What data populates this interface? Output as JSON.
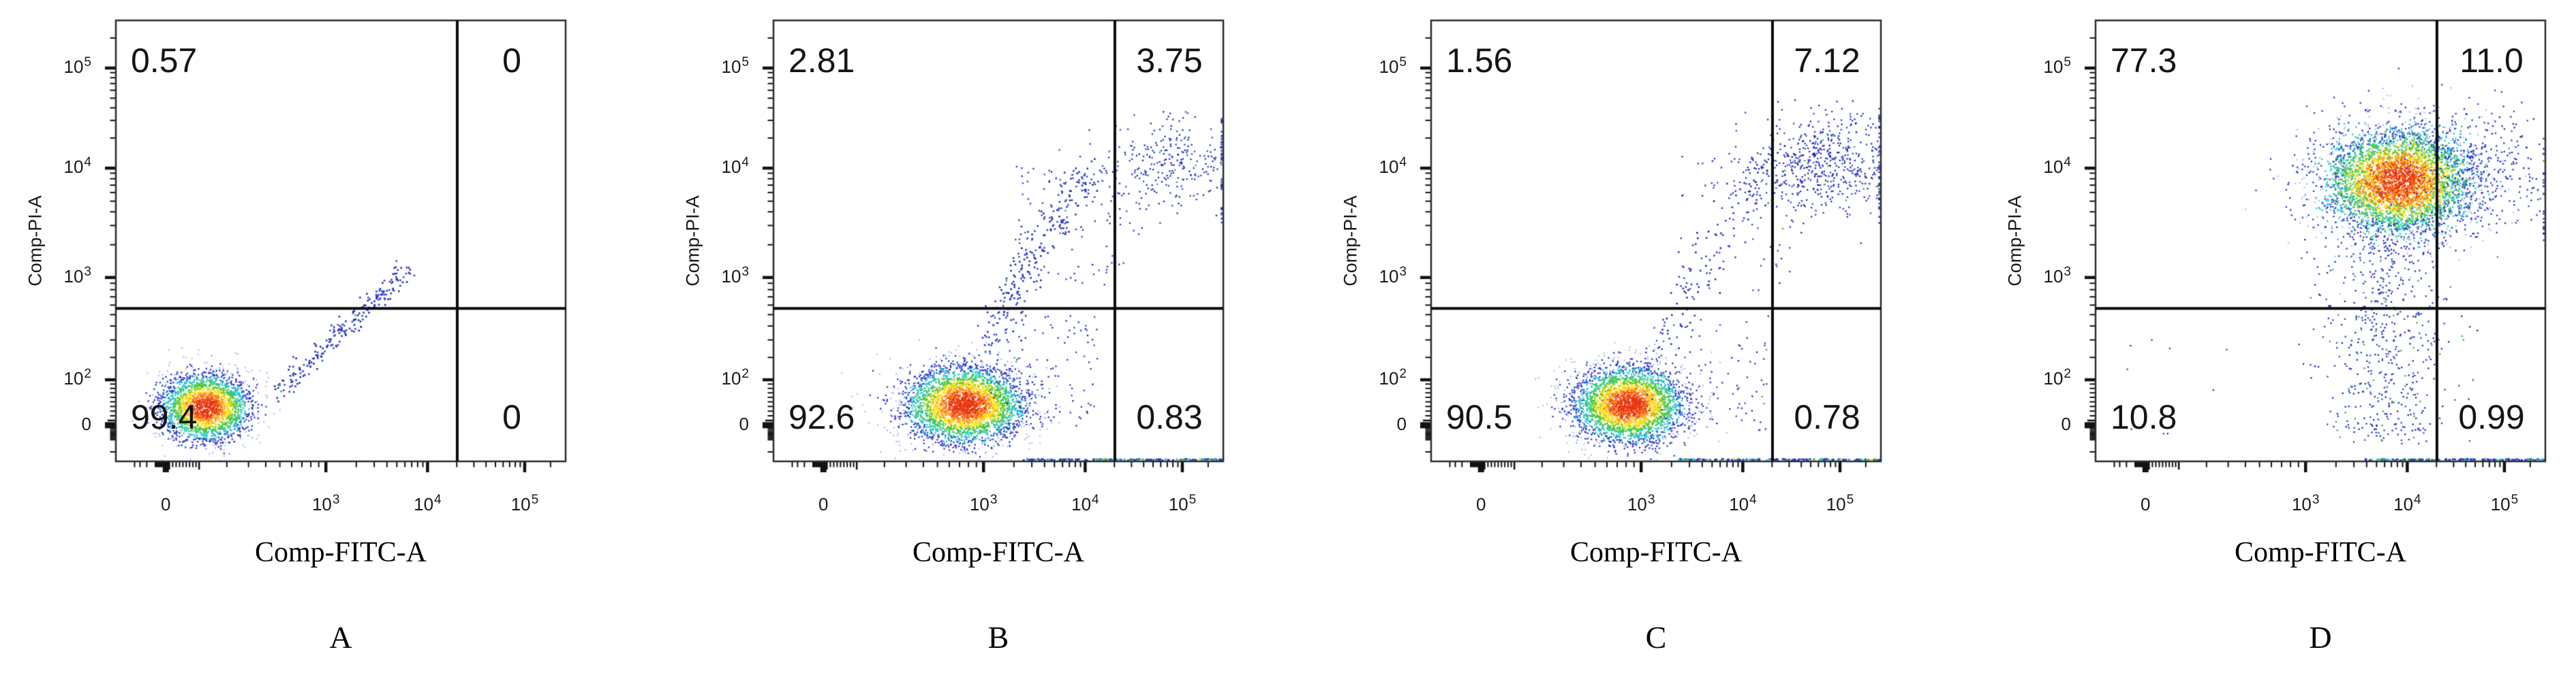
{
  "chart_data": {
    "type": "scatter",
    "subtype": "flow-cytometry-pseudocolor-dot-plot",
    "xlabel": "Comp-FITC-A",
    "ylabel": "Comp-PI-A",
    "x_ticks": [
      {
        "text": "0",
        "sup": null,
        "value": 0
      },
      {
        "text": "10",
        "sup": "3",
        "value": 1000
      },
      {
        "text": "10",
        "sup": "4",
        "value": 10000
      },
      {
        "text": "10",
        "sup": "5",
        "value": 100000
      }
    ],
    "y_ticks": [
      {
        "text": "0",
        "sup": null,
        "value": 0
      },
      {
        "text": "10",
        "sup": "2",
        "value": 100
      },
      {
        "text": "10",
        "sup": "3",
        "value": 1000
      },
      {
        "text": "10",
        "sup": "4",
        "value": 10000
      },
      {
        "text": "10",
        "sup": "5",
        "value": 100000
      }
    ],
    "axis_scale": "biexponential",
    "axis_calibration": {
      "x_anchors": [
        [
          -1000,
          0
        ],
        [
          0,
          0.111
        ],
        [
          1000,
          0.467
        ],
        [
          10000,
          0.693
        ],
        [
          100000,
          0.909
        ],
        [
          300000,
          1.0
        ]
      ],
      "y_anchors_from_bottom": [
        [
          -300,
          0
        ],
        [
          0,
          0.082
        ],
        [
          100,
          0.185
        ],
        [
          1000,
          0.417
        ],
        [
          10000,
          0.665
        ],
        [
          100000,
          0.892
        ],
        [
          300000,
          1.0
        ]
      ]
    },
    "gates": {
      "x_frac": 0.759,
      "y_frac_from_top": 0.653,
      "style": "quadrant-cross"
    },
    "palette": {
      "core": "#e8330e",
      "orange": "#fd8522",
      "yellow": "#ffe01b",
      "green": "#46c73c",
      "cyan": "#27c3cf",
      "blue": "#2a35cd",
      "pale": "#aeb6ec",
      "sparse_green": "#35ad45",
      "ink": "#111111"
    },
    "panels": [
      {
        "label": "A",
        "seed": 11,
        "quadrants": {
          "upper_left": "0.57",
          "upper_right": "0",
          "lower_left": "99.4",
          "lower_right": "0"
        },
        "populations": [
          {
            "kind": "blob",
            "name": "main-negative-population",
            "x_value": 120,
            "y_value": 35,
            "fx": 0.2,
            "fy": 0.878,
            "sx": 0.055,
            "sy": 0.042,
            "n": 2600,
            "noise": 0.08
          },
          {
            "kind": "streak",
            "name": "doublet-diagonal-streak",
            "x1": 0.355,
            "y1": 0.85,
            "x2": 0.648,
            "y2": 0.562,
            "jitter": 0.013,
            "n": 230
          }
        ]
      },
      {
        "label": "B",
        "seed": 22,
        "quadrants": {
          "upper_left": "2.81",
          "upper_right": "3.75",
          "lower_left": "92.6",
          "lower_right": "0.83"
        },
        "populations": [
          {
            "kind": "blob",
            "name": "main-negative-population",
            "x_value": 800,
            "y_value": 35,
            "fx": 0.425,
            "fy": 0.872,
            "sx": 0.075,
            "sy": 0.048,
            "n": 3600,
            "noise": 0.1
          },
          {
            "kind": "streak",
            "name": "apoptotic-arm-lower",
            "x1": 0.475,
            "y1": 0.78,
            "x2": 0.575,
            "y2": 0.52,
            "jitter": 0.022,
            "n": 130
          },
          {
            "kind": "streak",
            "name": "apoptotic-arm-upper",
            "x1": 0.575,
            "y1": 0.52,
            "x2": 0.705,
            "y2": 0.335,
            "jitter": 0.024,
            "n": 110
          },
          {
            "kind": "rect",
            "name": "mid-sparse-scatter",
            "x1": 0.52,
            "x2": 0.78,
            "y1": 0.33,
            "y2": 0.62,
            "n": 90
          },
          {
            "kind": "cloud",
            "name": "double-positive-cloud",
            "x_value": 60000,
            "y_value": 15000,
            "fx": 0.88,
            "fy": 0.325,
            "sx": 0.08,
            "sy": 0.055,
            "n": 300
          },
          {
            "kind": "rect",
            "name": "below-gate-tail",
            "x1": 0.48,
            "x2": 0.72,
            "y1": 0.67,
            "y2": 0.93,
            "n": 110
          },
          {
            "kind": "pileup",
            "name": "bottom-edge-pileup",
            "x1": 0.55,
            "x2": 1.0,
            "n": 150
          },
          {
            "kind": "vpile",
            "name": "right-edge-pileup",
            "y1": 0.2,
            "y2": 0.46,
            "n": 38
          }
        ]
      },
      {
        "label": "C",
        "seed": 33,
        "quadrants": {
          "upper_left": "1.56",
          "upper_right": "7.12",
          "lower_left": "90.5",
          "lower_right": "0.78"
        },
        "populations": [
          {
            "kind": "blob",
            "name": "main-negative-population",
            "x_value": 900,
            "y_value": 35,
            "fx": 0.44,
            "fy": 0.872,
            "sx": 0.068,
            "sy": 0.048,
            "n": 3400,
            "noise": 0.1
          },
          {
            "kind": "streak",
            "name": "apoptotic-arm-lower",
            "x1": 0.5,
            "y1": 0.77,
            "x2": 0.64,
            "y2": 0.47,
            "jitter": 0.025,
            "n": 70
          },
          {
            "kind": "streak",
            "name": "apoptotic-arm-upper",
            "x1": 0.64,
            "y1": 0.47,
            "x2": 0.76,
            "y2": 0.33,
            "jitter": 0.025,
            "n": 50
          },
          {
            "kind": "rect",
            "name": "mid-sparse-scatter",
            "x1": 0.55,
            "x2": 0.8,
            "y1": 0.3,
            "y2": 0.62,
            "n": 70
          },
          {
            "kind": "cloud",
            "name": "double-positive-cloud",
            "x_value": 55000,
            "y_value": 15000,
            "fx": 0.875,
            "fy": 0.325,
            "sx": 0.085,
            "sy": 0.058,
            "n": 620
          },
          {
            "kind": "rect",
            "name": "below-gate-tail",
            "x1": 0.48,
            "x2": 0.75,
            "y1": 0.67,
            "y2": 0.93,
            "n": 110
          },
          {
            "kind": "pileup",
            "name": "bottom-edge-pileup",
            "x1": 0.55,
            "x2": 1.0,
            "n": 150
          },
          {
            "kind": "vpile",
            "name": "right-edge-pileup",
            "y1": 0.2,
            "y2": 0.46,
            "n": 40
          }
        ]
      },
      {
        "label": "D",
        "seed": 44,
        "quadrants": {
          "upper_left": "77.3",
          "upper_right": "11.0",
          "lower_left": "10.8",
          "lower_right": "0.99"
        },
        "populations": [
          {
            "kind": "blob",
            "name": "pi-positive-main-cluster",
            "x_value": 8000,
            "y_value": 7000,
            "fx": 0.675,
            "fy": 0.365,
            "sx": 0.092,
            "sy": 0.066,
            "n": 5200,
            "noise": 0.2
          },
          {
            "kind": "cloud",
            "name": "right-spill-cloud",
            "x_value": 40000,
            "y_value": 12000,
            "fx": 0.86,
            "fy": 0.33,
            "sx": 0.09,
            "sy": 0.07,
            "n": 280
          },
          {
            "kind": "tail",
            "name": "downward-tail",
            "cx": 0.645,
            "sx": 0.07,
            "y1": 0.46,
            "y2": 0.96,
            "n": 620,
            "green": 0.12
          },
          {
            "kind": "rect",
            "name": "left-sparse-dots",
            "x1": 0.07,
            "x2": 0.32,
            "y1": 0.72,
            "y2": 0.95,
            "n": 10
          },
          {
            "kind": "pileup",
            "name": "bottom-edge-pileup",
            "x1": 0.6,
            "x2": 1.0,
            "n": 130
          },
          {
            "kind": "vpile",
            "name": "right-edge-pileup",
            "y1": 0.25,
            "y2": 0.5,
            "n": 26
          }
        ]
      }
    ]
  }
}
